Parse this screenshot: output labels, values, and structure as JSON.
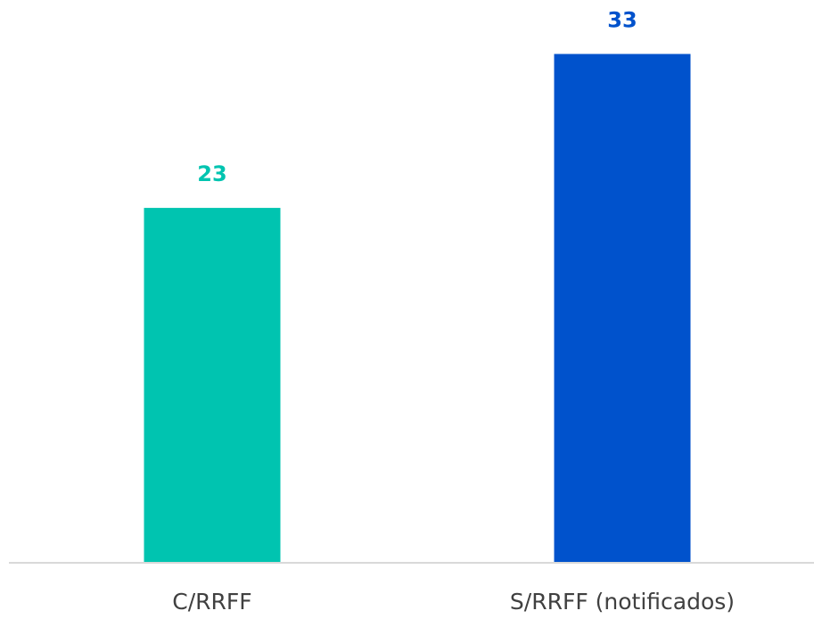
{
  "chart_data": {
    "type": "bar",
    "categories": [
      "C/RRFF",
      "S/RRFF (notificados)"
    ],
    "values": [
      23,
      33
    ],
    "colors": [
      "#00c4b0",
      "#0052cc"
    ],
    "ylim": [
      0,
      35
    ]
  }
}
